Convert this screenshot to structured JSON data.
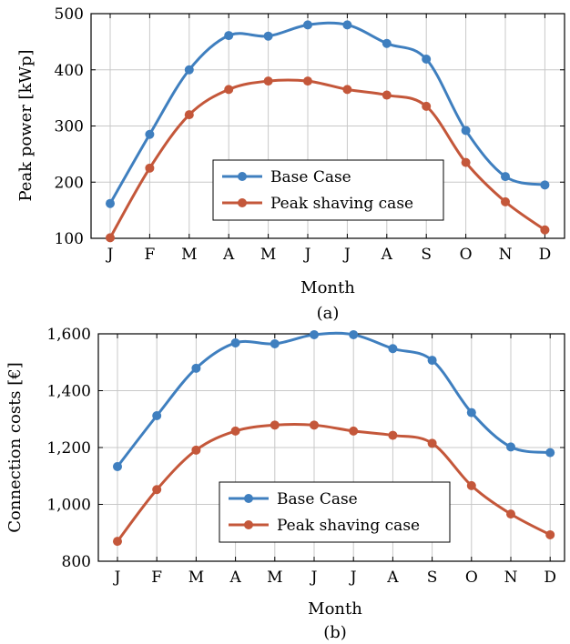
{
  "chart_data": [
    {
      "type": "line",
      "categories": [
        "J",
        "F",
        "M",
        "A",
        "M",
        "J",
        "J",
        "A",
        "S",
        "O",
        "N",
        "D"
      ],
      "series": [
        {
          "name": "Base Case",
          "color": "#3f7fbf",
          "values": [
            162,
            285,
            400,
            461,
            460,
            480,
            480,
            447,
            419,
            292,
            210,
            195
          ]
        },
        {
          "name": "Peak shaving case",
          "color": "#c4573a",
          "values": [
            101,
            225,
            320,
            365,
            380,
            380,
            365,
            355,
            335,
            235,
            165,
            115
          ]
        }
      ],
      "xlabel": "Month",
      "ylabel": "Peak power [kWp]",
      "ylim": [
        100,
        500
      ],
      "yticks": [
        "100",
        "200",
        "300",
        "400",
        "500"
      ],
      "ytick_values": [
        100,
        200,
        300,
        400,
        500
      ],
      "caption": "(a)",
      "grid": true,
      "legend_position": "lower-center"
    },
    {
      "type": "line",
      "categories": [
        "J",
        "F",
        "M",
        "A",
        "M",
        "J",
        "J",
        "A",
        "S",
        "O",
        "N",
        "D"
      ],
      "series": [
        {
          "name": "Base Case",
          "color": "#3f7fbf",
          "values": [
            1133,
            1312,
            1479,
            1568,
            1565,
            1597,
            1597,
            1548,
            1507,
            1323,
            1202,
            1182
          ]
        },
        {
          "name": "Peak shaving case",
          "color": "#c4573a",
          "values": [
            870,
            1052,
            1191,
            1258,
            1279,
            1279,
            1258,
            1243,
            1215,
            1066,
            966,
            893
          ]
        }
      ],
      "xlabel": "Month",
      "ylabel": "Connection costs [€]",
      "ylim": [
        800,
        1600
      ],
      "yticks": [
        "800",
        "1,000",
        "1,200",
        "1,400",
        "1,600"
      ],
      "ytick_values": [
        800,
        1000,
        1200,
        1400,
        1600
      ],
      "caption": "(b)",
      "grid": true,
      "legend_position": "lower-center"
    }
  ]
}
